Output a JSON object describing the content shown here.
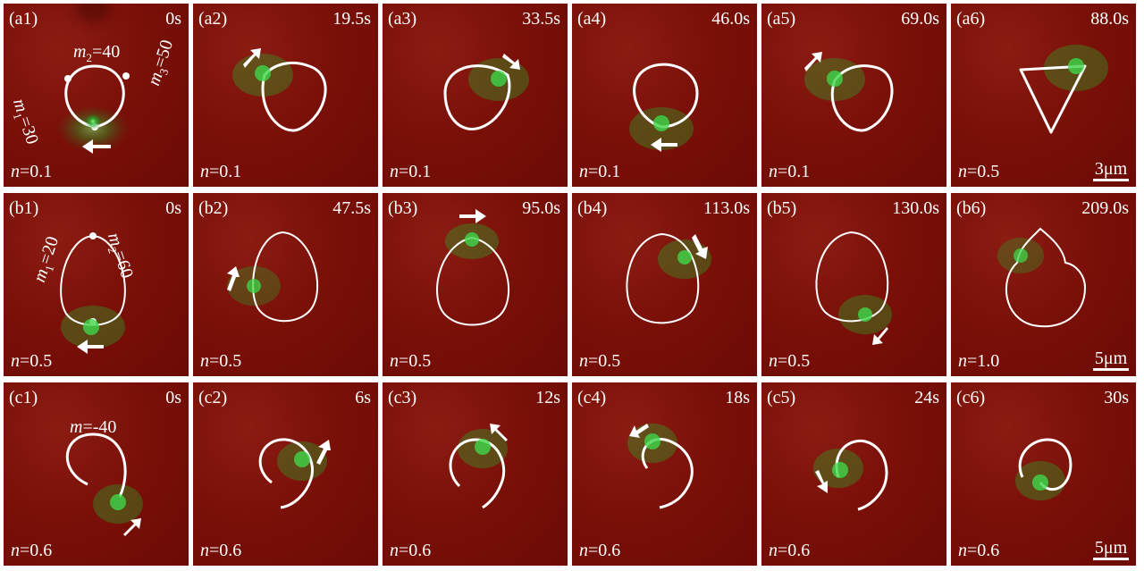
{
  "colors": {
    "background": "#7a1008",
    "filament": "#ffffff",
    "glow": "#2ecc40"
  },
  "panels": {
    "a1": {
      "label": "(a1)",
      "time": "0s",
      "n": "=0.1",
      "ann1": "=40",
      "ann2": "=30",
      "ann3": "=50"
    },
    "a2": {
      "label": "(a2)",
      "time": "19.5s",
      "n": "=0.1"
    },
    "a3": {
      "label": "(a3)",
      "time": "33.5s",
      "n": "=0.1"
    },
    "a4": {
      "label": "(a4)",
      "time": "46.0s",
      "n": "=0.1"
    },
    "a5": {
      "label": "(a5)",
      "time": "69.0s",
      "n": "=0.1"
    },
    "a6": {
      "label": "(a6)",
      "time": "88.0s",
      "n": "=0.5",
      "scale": "3μm"
    },
    "b1": {
      "label": "(b1)",
      "time": "0s",
      "n": "=0.5",
      "ann1": "=20",
      "ann2": "=60"
    },
    "b2": {
      "label": "(b2)",
      "time": "47.5s",
      "n": "=0.5"
    },
    "b3": {
      "label": "(b3)",
      "time": "95.0s",
      "n": "=0.5"
    },
    "b4": {
      "label": "(b4)",
      "time": "113.0s",
      "n": "=0.5"
    },
    "b5": {
      "label": "(b5)",
      "time": "130.0s",
      "n": "=0.5"
    },
    "b6": {
      "label": "(b6)",
      "time": "209.0s",
      "n": "=1.0",
      "scale": "5μm"
    },
    "c1": {
      "label": "(c1)",
      "time": "0s",
      "n": "=0.6",
      "ann1": "=-40"
    },
    "c2": {
      "label": "(c2)",
      "time": "6s",
      "n": "=0.6"
    },
    "c3": {
      "label": "(c3)",
      "time": "12s",
      "n": "=0.6"
    },
    "c4": {
      "label": "(c4)",
      "time": "18s",
      "n": "=0.6"
    },
    "c5": {
      "label": "(c5)",
      "time": "24s",
      "n": "=0.6"
    },
    "c6": {
      "label": "(c6)",
      "time": "30s",
      "n": "=0.6",
      "scale": "5μm"
    }
  },
  "symbols": {
    "n": "n",
    "m": "m",
    "m1": "1",
    "m2": "2",
    "m3": "3"
  }
}
